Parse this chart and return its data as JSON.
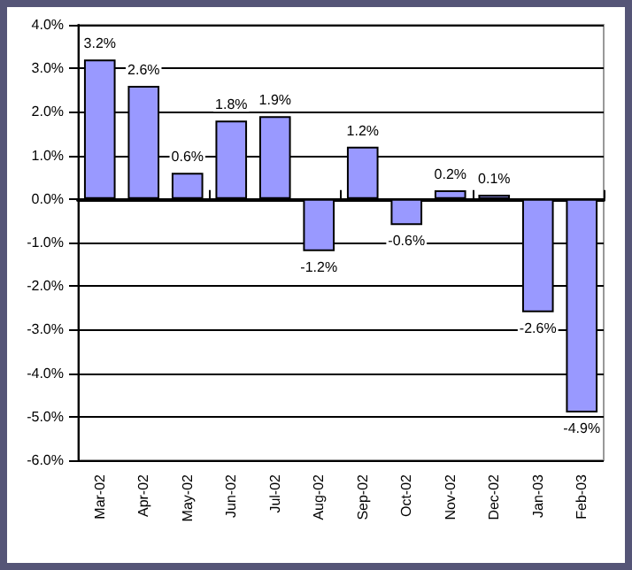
{
  "chart_data": {
    "type": "bar",
    "categories": [
      "Mar-02",
      "Apr-02",
      "May-02",
      "Jun-02",
      "Jul-02",
      "Aug-02",
      "Sep-02",
      "Oct-02",
      "Nov-02",
      "Dec-02",
      "Jan-03",
      "Feb-03"
    ],
    "values": [
      3.2,
      2.6,
      0.6,
      1.8,
      1.9,
      -1.2,
      1.2,
      -0.6,
      0.2,
      0.1,
      -2.6,
      -4.9
    ],
    "value_labels": [
      "3.2%",
      "2.6%",
      "0.6%",
      "1.8%",
      "1.9%",
      "-1.2%",
      "1.2%",
      "-0.6%",
      "0.2%",
      "0.1%",
      "-2.6%",
      "-4.9%"
    ],
    "color": "#9999ff",
    "ylim": [
      -6,
      4
    ],
    "yticks": [
      {
        "value": -6,
        "label": "-6.0%"
      },
      {
        "value": -5,
        "label": "-5.0%"
      },
      {
        "value": -4,
        "label": "-4.0%"
      },
      {
        "value": -3,
        "label": "-3.0%"
      },
      {
        "value": -2,
        "label": "-2.0%"
      },
      {
        "value": -1,
        "label": "-1.0%"
      },
      {
        "value": 0,
        "label": "0.0%"
      },
      {
        "value": 1,
        "label": "1.0%"
      },
      {
        "value": 2,
        "label": "2.0%"
      },
      {
        "value": 3,
        "label": "3.0%"
      },
      {
        "value": 4,
        "label": "4.0%"
      }
    ],
    "grid": "y"
  }
}
